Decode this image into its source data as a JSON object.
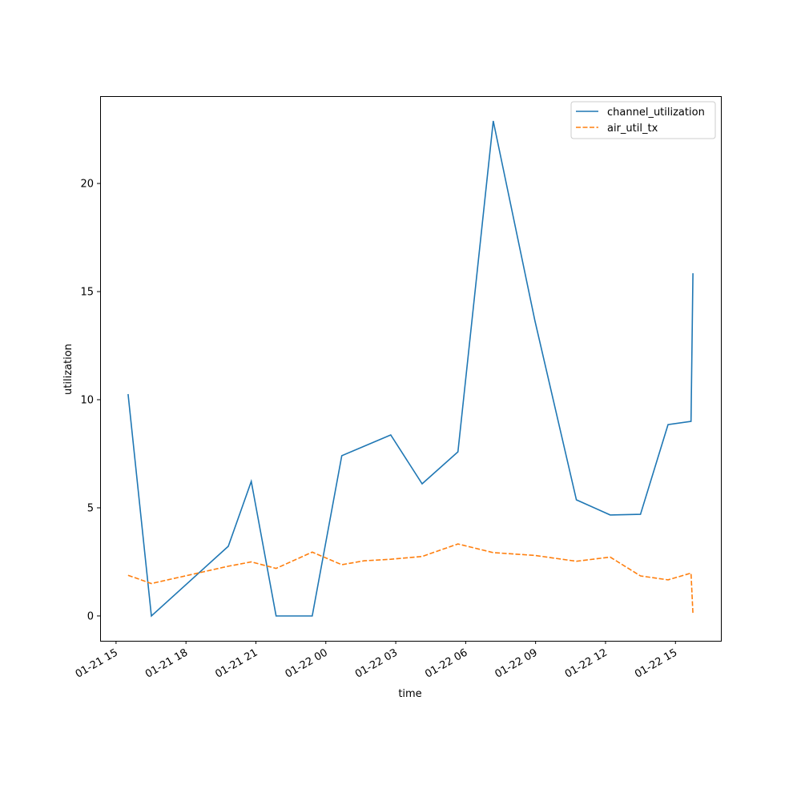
{
  "chart_data": {
    "type": "line",
    "title": "",
    "xlabel": "time",
    "ylabel": "utilization",
    "x_tick_labels": [
      "01-21 15",
      "01-21 18",
      "01-21 21",
      "01-22 00",
      "01-22 03",
      "01-22 06",
      "01-22 09",
      "01-22 12",
      "01-22 15"
    ],
    "x_ticks": [
      "01-21 15:00",
      "01-21 18:00",
      "01-21 21:00",
      "01-22 00:00",
      "01-22 03:00",
      "01-22 06:00",
      "01-22 09:00",
      "01-22 12:00",
      "01-22 15:00"
    ],
    "xlim": [
      "01-21 14:19",
      "01-22 16:57"
    ],
    "y_ticks": [
      0,
      5,
      10,
      15,
      20
    ],
    "ylim": [
      -1.15,
      24.04
    ],
    "grid": false,
    "legend_position": "top-right",
    "x": [
      "01-21 15:31",
      "01-21 16:31",
      "01-21 19:49",
      "01-21 20:48",
      "01-21 21:52",
      "01-21 23:25",
      "01-22 00:41",
      "01-22 01:39",
      "01-22 02:47",
      "01-22 04:08",
      "01-22 05:40",
      "01-22 07:11",
      "01-22 08:58",
      "01-22 10:45",
      "01-22 12:12",
      "01-22 13:30",
      "01-22 14:41",
      "01-22 15:40",
      "01-22 15:45"
    ],
    "series": [
      {
        "name": "channel_utilization",
        "color": "#1f77b4",
        "style": "solid",
        "values": [
          10.26,
          0,
          3.22,
          6.22,
          0,
          0,
          7.41,
          7.85,
          8.37,
          6.11,
          7.59,
          22.89,
          13.67,
          5.37,
          4.67,
          4.7,
          8.85,
          9.0,
          15.85
        ]
      },
      {
        "name": "air_util_tx",
        "color": "#ff7f0e",
        "style": "dashed",
        "values": [
          1.88,
          1.5,
          2.3,
          2.5,
          2.2,
          2.95,
          2.37,
          2.55,
          2.62,
          2.75,
          3.33,
          2.93,
          2.8,
          2.53,
          2.72,
          1.85,
          1.67,
          1.98,
          0.1
        ]
      }
    ]
  }
}
